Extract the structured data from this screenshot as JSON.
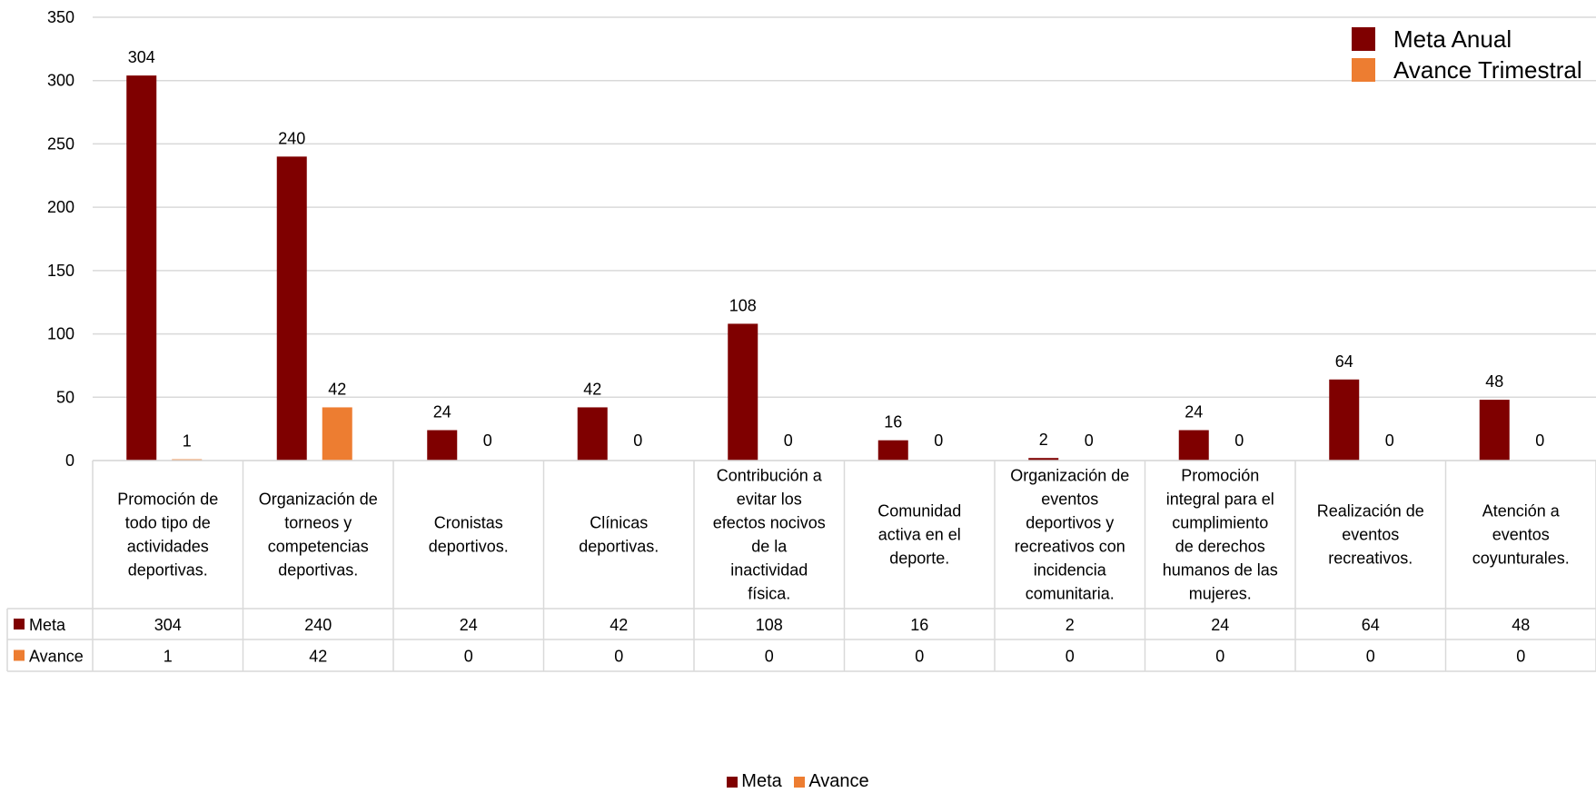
{
  "chart_data": {
    "type": "bar",
    "categories": [
      "Promoción de todo tipo de actividades deportivas.",
      "Organización de torneos y competencias deportivas.",
      "Cronistas deportivos.",
      "Clínicas deportivas.",
      "Contribución a evitar los efectos nocivos de la inactividad física.",
      "Comunidad activa en el deporte.",
      "Organización de eventos deportivos y recreativos con incidencia comunitaria.",
      "Promoción integral para el cumplimiento de derechos humanos de las mujeres.",
      "Realización de eventos recreativos.",
      "Atención a eventos coyunturales."
    ],
    "category_lines": [
      [
        "Promoción de",
        "todo tipo de",
        "actividades",
        "deportivas."
      ],
      [
        "Organización de",
        "torneos y",
        "competencias",
        "deportivas."
      ],
      [
        "Cronistas",
        "deportivos."
      ],
      [
        "Clínicas",
        "deportivas."
      ],
      [
        "Contribución a",
        "evitar los",
        "efectos nocivos",
        "de la",
        "inactividad",
        "física."
      ],
      [
        "Comunidad",
        "activa en el",
        "deporte."
      ],
      [
        "Organización de",
        "eventos",
        "deportivos y",
        "recreativos con",
        "incidencia",
        "comunitaria."
      ],
      [
        "Promoción",
        "integral para el",
        "cumplimiento",
        "de derechos",
        "humanos de las",
        "mujeres."
      ],
      [
        "Realización de",
        "eventos",
        "recreativos."
      ],
      [
        "Atención a",
        "eventos",
        "coyunturales."
      ]
    ],
    "series": [
      {
        "name": "Meta",
        "values": [
          304,
          240,
          24,
          42,
          108,
          16,
          2,
          24,
          64,
          48
        ],
        "color": "#7f0000"
      },
      {
        "name": "Avance",
        "values": [
          1,
          42,
          0,
          0,
          0,
          0,
          0,
          0,
          0,
          0
        ],
        "color": "#ed7d31"
      }
    ],
    "ylim": [
      0,
      350
    ],
    "yticks": [
      0,
      50,
      100,
      150,
      200,
      250,
      300,
      350
    ],
    "grid": true,
    "data_table": true,
    "legend_top": [
      {
        "label": "Meta Anual",
        "color": "#7f0000"
      },
      {
        "label": "Avance Trimestral",
        "color": "#ed7d31"
      }
    ],
    "legend_bottom": [
      {
        "label": "Meta",
        "color": "#7f0000"
      },
      {
        "label": "Avance",
        "color": "#ed7d31"
      }
    ],
    "legend_top_placement": "top-right",
    "legend_bottom_placement": "bottom-center"
  }
}
